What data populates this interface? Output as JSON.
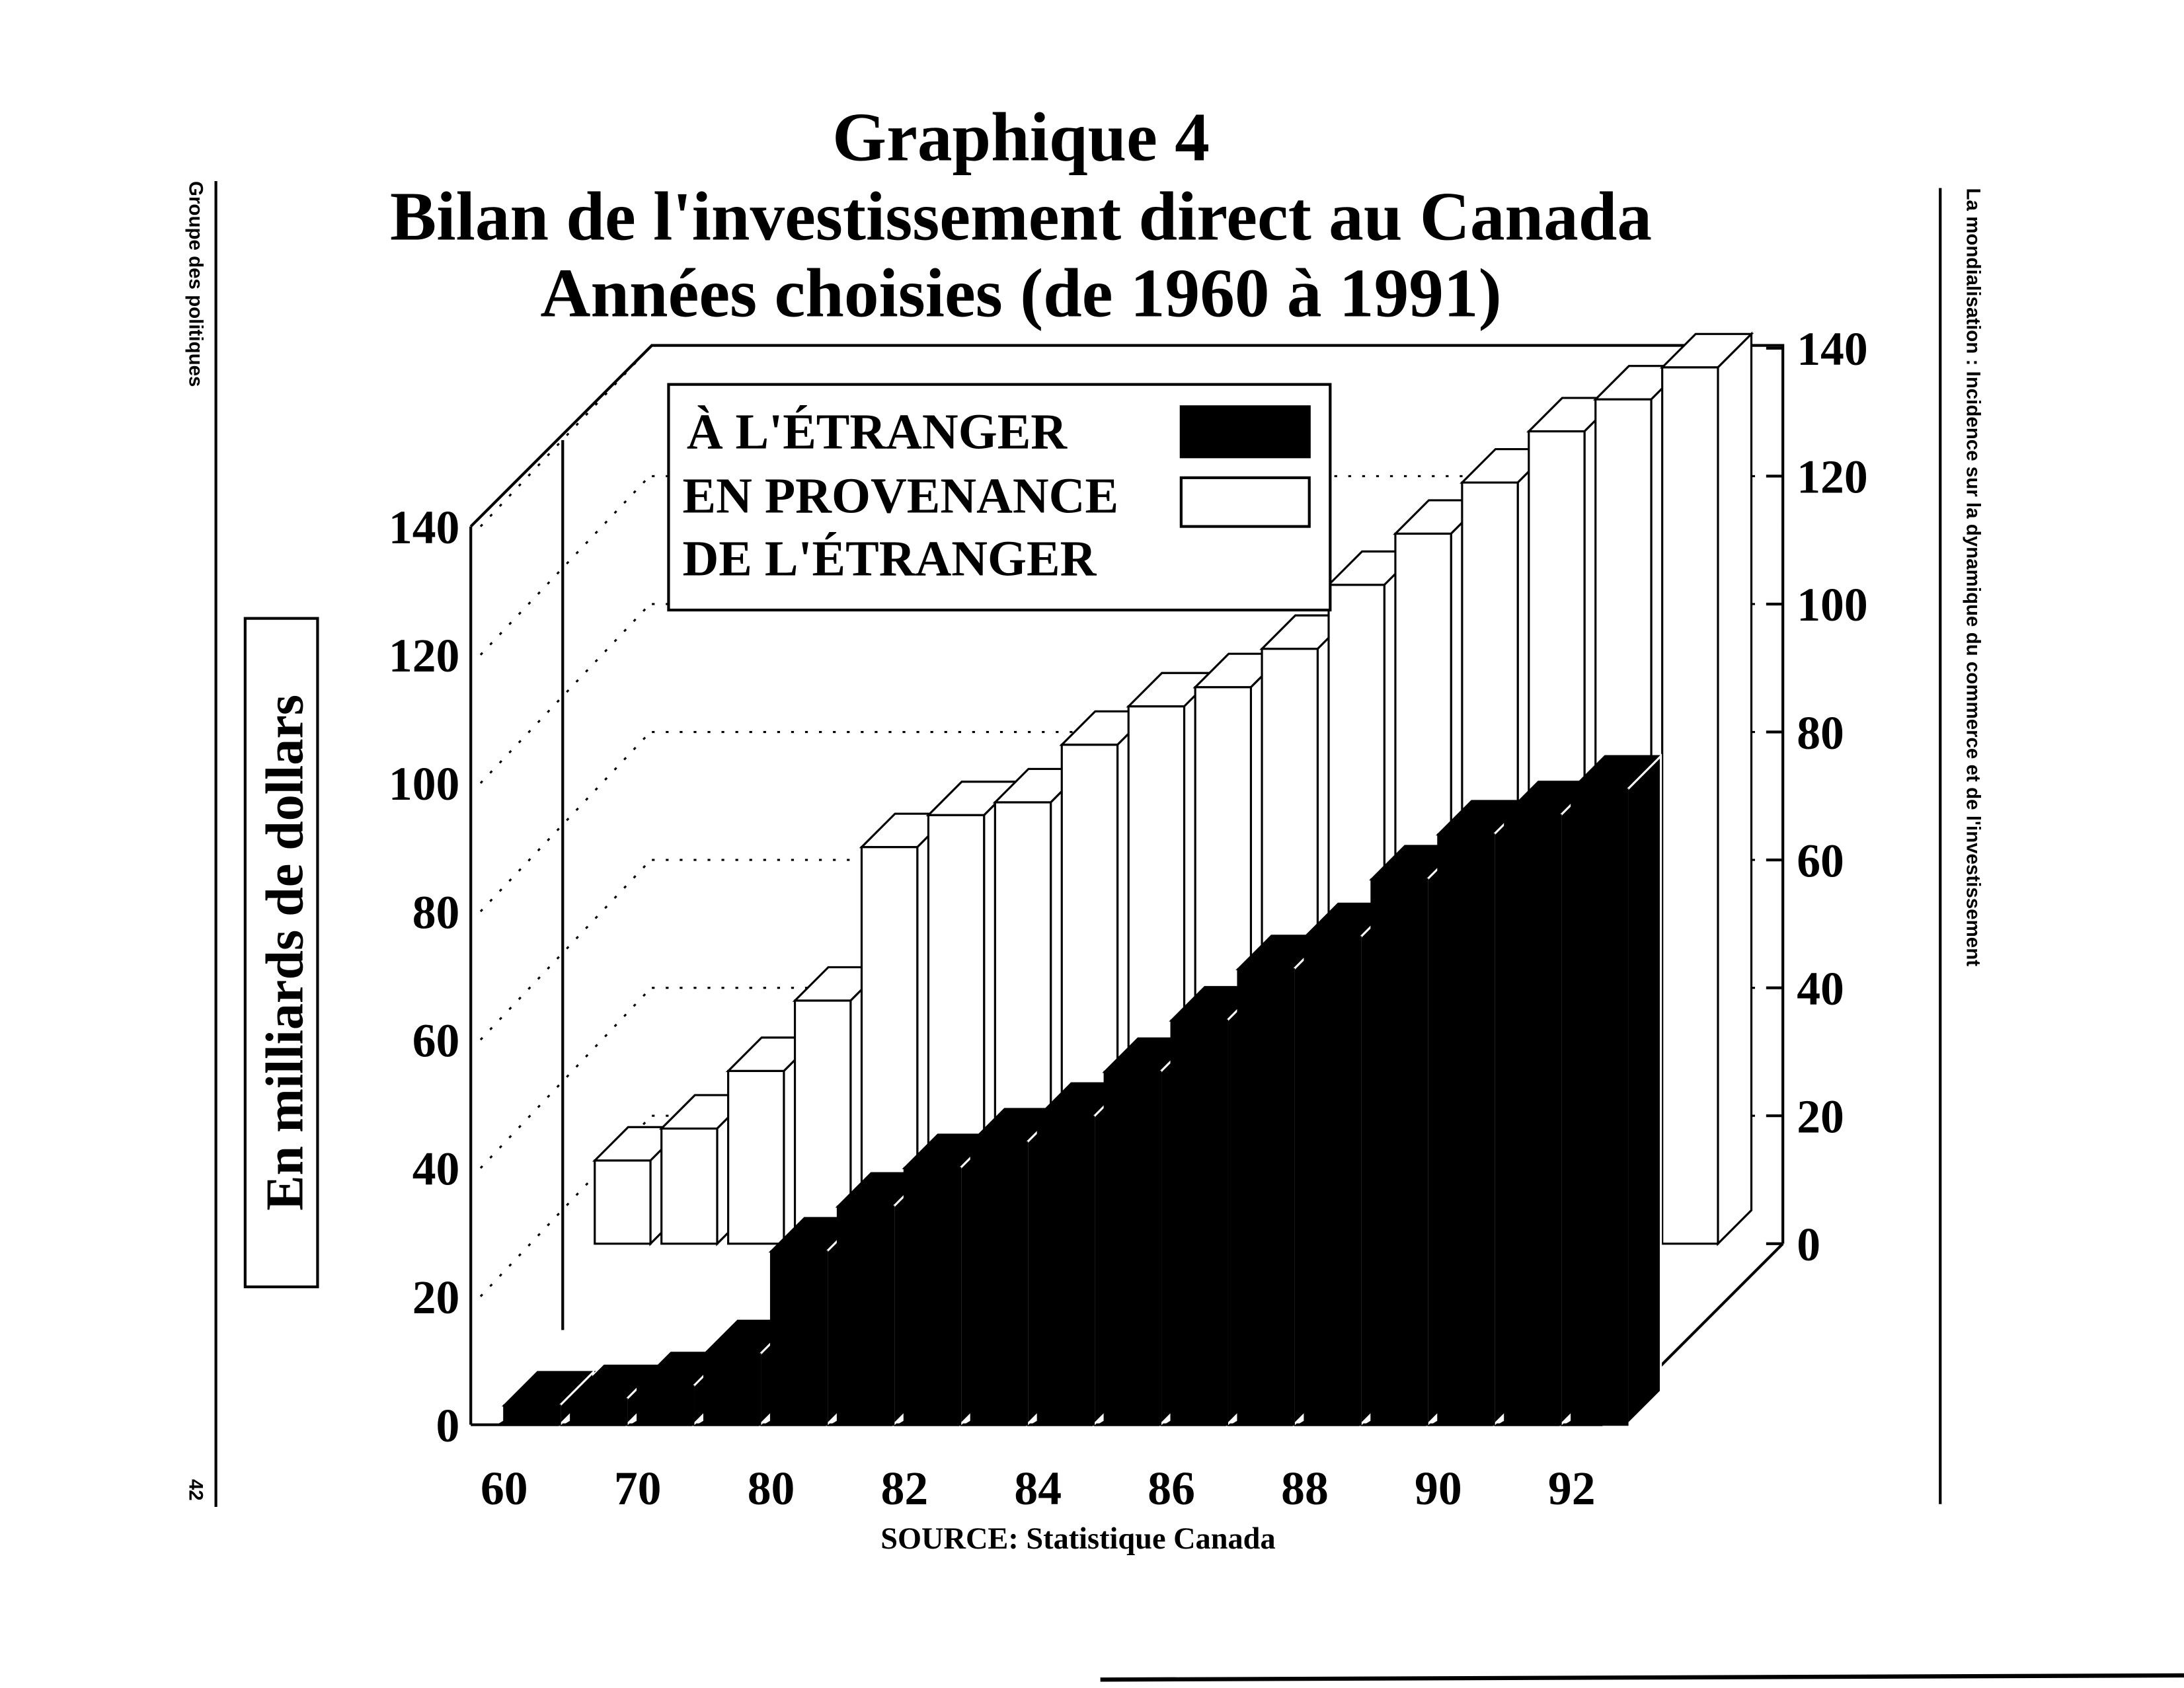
{
  "page": {
    "left_margin": "Groupe des politiques",
    "page_number": "42",
    "right_margin": "La mondialisation : Incidence sur la dynamique du commerce et de l'investissement"
  },
  "chart_data": {
    "type": "bar",
    "title": "Graphique 4",
    "subtitle": [
      "Bilan de l'investissement direct au Canada",
      "Années choisies (de 1960 à 1991)"
    ],
    "y_label": "En milliards de dollars",
    "source": "SOURCE:  Statistique Canada",
    "categories": [
      "60",
      null,
      "70",
      null,
      "80",
      null,
      "82",
      null,
      "84",
      null,
      "86",
      null,
      "88",
      null,
      "90",
      null,
      "92"
    ],
    "series": [
      {
        "name": "À L'ÉTRANGER",
        "color": "#000000",
        "values": [
          3,
          4,
          6,
          11,
          27,
          34,
          40,
          44,
          48,
          55,
          63,
          71,
          76,
          85,
          92,
          95,
          99
        ]
      },
      {
        "name": "EN PROVENANCE DE L'ÉTRANGER",
        "color": "#ffffff",
        "axis": "y2",
        "values": [
          13,
          18,
          27,
          38,
          62,
          67,
          69,
          78,
          84,
          87,
          93,
          103,
          111,
          119,
          127,
          132,
          137
        ]
      }
    ],
    "ylim": [
      0,
      140
    ],
    "yticks": [
      0,
      20,
      40,
      60,
      80,
      100,
      120,
      140
    ],
    "y2lim": [
      0,
      140
    ],
    "y2ticks": [
      0,
      20,
      40,
      60,
      80,
      100,
      120,
      140
    ],
    "grid": true
  }
}
